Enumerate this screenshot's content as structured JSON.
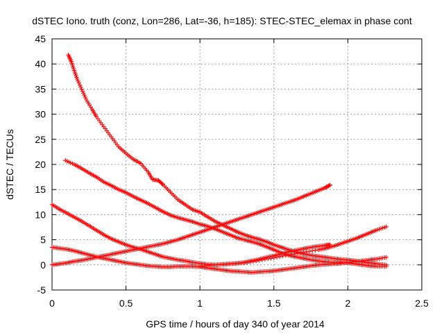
{
  "chart_data": {
    "type": "scatter",
    "title": "dSTEC Iono. truth (conz, Lon=286, Lat=-36, h=185): STEC-STEC_elemax in phase cont",
    "xlabel": "GPS time / hours of day 340 of year 2014",
    "ylabel": "dSTEC  / TECUs",
    "xlim": [
      0,
      2.5
    ],
    "ylim": [
      -5,
      45
    ],
    "xticks": [
      0,
      0.5,
      1,
      1.5,
      2,
      2.5
    ],
    "xtick_labels": [
      "0",
      "0.5",
      "1",
      "1.5",
      "2",
      "2.5"
    ],
    "yticks": [
      -5,
      0,
      5,
      10,
      15,
      20,
      25,
      30,
      35,
      40,
      45
    ],
    "ytick_labels": [
      "-5",
      "0",
      "5",
      "10",
      "15",
      "20",
      "25",
      "30",
      "35",
      "40",
      "45"
    ],
    "grid": true,
    "marker": "plus",
    "color": "#ff0000",
    "series": [
      {
        "x": [
          0.11,
          0.13,
          0.15,
          0.17,
          0.2,
          0.23,
          0.27,
          0.3,
          0.35,
          0.4,
          0.45,
          0.5,
          0.55,
          0.6,
          0.65,
          0.68,
          0.72,
          0.75,
          0.8,
          0.85,
          0.9,
          0.95,
          1.0,
          1.05,
          1.1,
          1.15,
          1.2,
          1.25,
          1.3,
          1.35,
          1.4,
          1.45,
          1.5,
          1.55,
          1.6,
          1.65,
          1.7,
          1.75,
          1.8,
          1.85,
          1.9,
          1.95,
          2.0,
          2.05,
          2.1,
          2.15,
          2.2,
          2.26
        ],
        "y": [
          41.8,
          40.5,
          38.7,
          37.0,
          35.0,
          33.0,
          31.0,
          29.5,
          27.5,
          25.5,
          23.5,
          22.2,
          21.0,
          20.2,
          18.5,
          17.0,
          16.8,
          16.0,
          14.5,
          13.0,
          12.0,
          11.0,
          10.5,
          9.6,
          8.7,
          8.0,
          7.3,
          6.6,
          6.0,
          5.5,
          5.1,
          4.6,
          4.0,
          3.5,
          3.0,
          2.6,
          2.2,
          1.9,
          1.7,
          1.5,
          1.3,
          1.1,
          1.0,
          0.8,
          0.6,
          0.4,
          0.2,
          0.0
        ]
      },
      {
        "x": [
          0.09,
          0.15,
          0.2,
          0.25,
          0.3,
          0.35,
          0.4,
          0.45,
          0.5,
          0.55,
          0.6,
          0.65,
          0.7,
          0.75,
          0.8,
          0.85,
          0.9,
          0.95,
          1.0,
          1.05,
          1.1,
          1.15,
          1.2,
          1.25,
          1.3,
          1.35,
          1.4,
          1.45,
          1.5,
          1.55,
          1.6,
          1.65,
          1.7,
          1.75,
          1.8,
          1.85,
          1.9,
          1.95,
          2.0,
          2.05,
          2.1,
          2.15,
          2.2,
          2.26
        ],
        "y": [
          20.8,
          20.0,
          19.2,
          18.3,
          17.5,
          16.5,
          15.8,
          15.0,
          14.4,
          13.6,
          12.9,
          12.2,
          11.4,
          10.6,
          9.9,
          9.4,
          9.0,
          8.6,
          8.1,
          7.7,
          7.2,
          6.6,
          6.0,
          5.4,
          5.0,
          4.6,
          4.2,
          3.6,
          3.0,
          2.4,
          1.9,
          1.6,
          1.3,
          1.0,
          0.8,
          0.6,
          0.5,
          0.5,
          0.4,
          0.2,
          0.0,
          -0.2,
          -0.3,
          -0.3
        ]
      },
      {
        "x": [
          0.0,
          0.05,
          0.1,
          0.15,
          0.2,
          0.25,
          0.3,
          0.35,
          0.4,
          0.45,
          0.5,
          0.55,
          0.6,
          0.65,
          0.7,
          0.75,
          0.8,
          0.85,
          0.9,
          0.95,
          1.0,
          1.05,
          1.1,
          1.15,
          1.2,
          1.25,
          1.3,
          1.35,
          1.4,
          1.45,
          1.5,
          1.55,
          1.6,
          1.65,
          1.7,
          1.75,
          1.8,
          1.85,
          1.88
        ],
        "y": [
          12.0,
          11.1,
          10.3,
          9.5,
          8.7,
          7.8,
          6.9,
          6.0,
          5.2,
          4.6,
          4.0,
          3.5,
          3.1,
          2.6,
          2.1,
          1.6,
          1.3,
          1.0,
          0.8,
          0.5,
          0.3,
          0.1,
          0.0,
          0.1,
          0.2,
          0.3,
          0.5,
          0.8,
          1.1,
          1.5,
          1.8,
          2.2,
          2.6,
          2.9,
          3.2,
          3.5,
          3.7,
          3.9,
          4.0
        ]
      },
      {
        "x": [
          0.0,
          0.05,
          0.1,
          0.15,
          0.2,
          0.25,
          0.3,
          0.35,
          0.4,
          0.45,
          0.5,
          0.55,
          0.6,
          0.65,
          0.7,
          0.75,
          0.8,
          0.85,
          0.9,
          0.95,
          1.0,
          1.05,
          1.1,
          1.15,
          1.2,
          1.25,
          1.3,
          1.35,
          1.4,
          1.45,
          1.5,
          1.55,
          1.6,
          1.65,
          1.7,
          1.75,
          1.8,
          1.85,
          1.88
        ],
        "y": [
          0.0,
          0.2,
          0.4,
          0.7,
          0.9,
          1.2,
          1.5,
          1.8,
          2.1,
          2.4,
          2.7,
          3.0,
          3.3,
          3.6,
          3.9,
          4.2,
          4.6,
          5.0,
          5.5,
          6.0,
          6.5,
          7.0,
          7.5,
          8.0,
          8.5,
          9.0,
          9.5,
          10.0,
          10.5,
          11.0,
          11.5,
          12.0,
          12.5,
          13.0,
          13.6,
          14.2,
          14.8,
          15.4,
          15.9
        ]
      },
      {
        "x": [
          0.0,
          0.05,
          0.1,
          0.15,
          0.2,
          0.25,
          0.3,
          0.35,
          0.4,
          0.45,
          0.5,
          0.55,
          0.6,
          0.65,
          0.7,
          0.75,
          0.8,
          0.85,
          0.9,
          0.95,
          1.0,
          1.05,
          1.1,
          1.15,
          1.2,
          1.25,
          1.3,
          1.35,
          1.4,
          1.45,
          1.5,
          1.55,
          1.6,
          1.65,
          1.7,
          1.75,
          1.8,
          1.85,
          1.9,
          1.95,
          2.0,
          2.05,
          2.1,
          2.15,
          2.2,
          2.26
        ],
        "y": [
          3.5,
          3.3,
          3.1,
          2.8,
          2.4,
          2.0,
          1.6,
          1.3,
          1.0,
          0.7,
          0.4,
          0.2,
          0.0,
          -0.2,
          -0.3,
          -0.4,
          -0.4,
          -0.3,
          -0.3,
          -0.3,
          -0.4,
          -0.6,
          -0.8,
          -1.0,
          -1.2,
          -1.3,
          -1.4,
          -1.5,
          -1.4,
          -1.3,
          -1.2,
          -1.0,
          -0.8,
          -0.6,
          -0.4,
          -0.2,
          0.0,
          0.1,
          0.2,
          0.3,
          0.5,
          0.6,
          0.8,
          1.0,
          1.2,
          1.5
        ]
      },
      {
        "x": [
          1.0,
          1.1,
          1.2,
          1.3,
          1.4,
          1.5,
          1.6,
          1.7,
          1.8,
          1.85,
          1.9,
          1.95,
          2.0,
          2.05,
          2.1,
          2.15,
          2.2,
          2.26
        ],
        "y": [
          -0.3,
          0.0,
          0.2,
          0.4,
          0.9,
          1.4,
          2.0,
          2.5,
          3.0,
          3.3,
          3.7,
          4.2,
          4.7,
          5.2,
          5.8,
          6.4,
          7.0,
          7.6
        ]
      }
    ]
  }
}
